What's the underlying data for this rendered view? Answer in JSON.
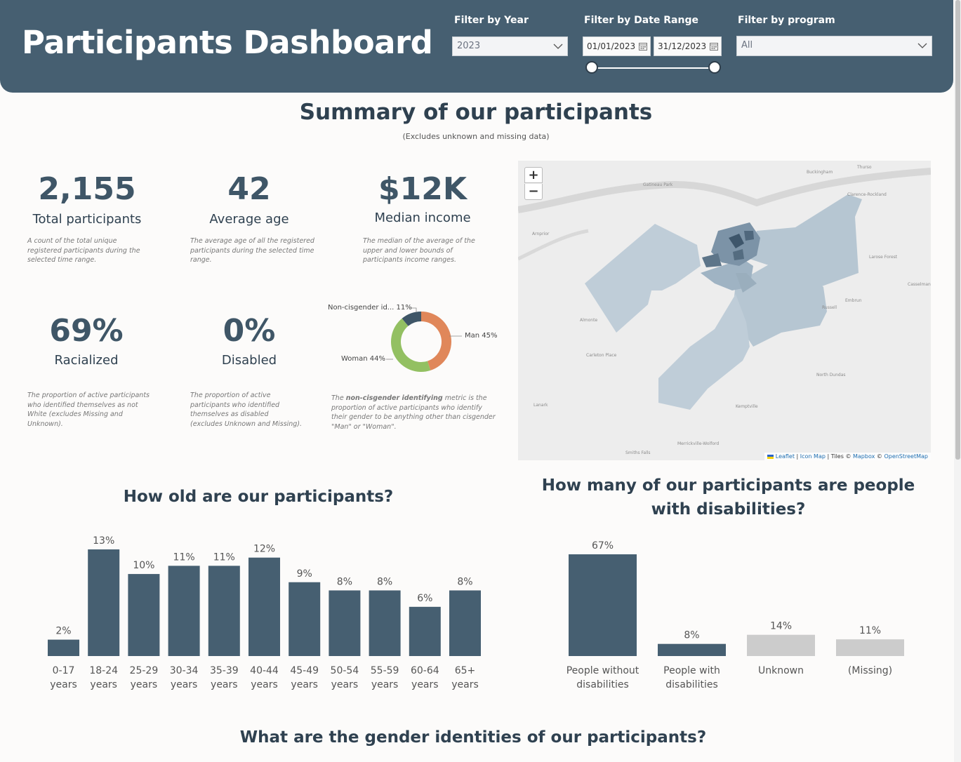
{
  "header": {
    "title": "Participants Dashboard",
    "filter_year": {
      "label": "Filter by Year",
      "value": "2023"
    },
    "filter_date": {
      "label": "Filter by Date Range",
      "start": "01/01/2023",
      "end": "31/12/2023"
    },
    "filter_program": {
      "label": "Filter by program",
      "value": "All"
    }
  },
  "summary": {
    "title": "Summary of our participants",
    "subtitle": "(Excludes unknown and missing data)"
  },
  "kpis": {
    "total": {
      "value": "2,155",
      "label": "Total participants",
      "desc": "A count of the total unique registered participants during the selected time range."
    },
    "age": {
      "value": "42",
      "label": "Average age",
      "desc": "The average age of all the registered participants during the selected time range."
    },
    "income": {
      "value": "$12K",
      "label": "Median income",
      "desc": "The median of the average of the upper and lower bounds of participants income ranges."
    },
    "racialized": {
      "value": "69%",
      "label": "Racialized",
      "desc": "The proportion of active participants who identified themselves as not White (excludes Missing and Unknown)."
    },
    "disabled": {
      "value": "0%",
      "label": "Disabled",
      "desc": "The proportion of active participants who identified themselves as disabled (excludes Unknown and Missing)."
    }
  },
  "gender_donut": {
    "desc_pre": "The ",
    "desc_bold": "non-cisgender identifying",
    "desc_post": " metric is the proportion of active participants who identify their gender to be anything other than cisgender \"Man\" or \"Woman\".",
    "label_man": "Man 45%",
    "label_woman": "Woman 44%",
    "label_noncis": "Non-cisgender id... 11%"
  },
  "map": {
    "zoom_in": "+",
    "zoom_out": "−",
    "places": [
      "Buckingham",
      "Thurso",
      "Clarence-Rockland",
      "Gatineau Park",
      "Arnprior",
      "Larose Forest",
      "Casselman",
      "Embrun",
      "Russell",
      "Almonte",
      "Carleton Place",
      "North Dundas",
      "Kemptville",
      "Merrickville-Wolford",
      "Smiths Falls",
      "Lanark"
    ],
    "attr_leaflet": "Leaflet",
    "attr_iconmap": "Icon Map",
    "attr_tiles": "| Tiles ©",
    "attr_mapbox": "Mapbox",
    "attr_copy": "©",
    "attr_osm": "OpenStreetMap"
  },
  "age_section": {
    "title": "How old are our participants?"
  },
  "disability_section": {
    "title_line1": "How many of our participants are people",
    "title_line2": "with disabilities?"
  },
  "gender_section": {
    "title": "What are the gender identities of our participants?"
  },
  "colors": {
    "header": "#465f71",
    "bar": "#465f71",
    "bar_muted": "#cccccc",
    "man": "#e0875a",
    "woman": "#93c062",
    "noncis": "#3f5667"
  },
  "chart_data": [
    {
      "type": "pie",
      "title": "",
      "categories": [
        "Man",
        "Woman",
        "Non-cisgender identifying"
      ],
      "values": [
        45,
        44,
        11
      ]
    },
    {
      "type": "bar",
      "title": "How old are our participants?",
      "categories": [
        "0-17 years",
        "18-24 years",
        "25-29 years",
        "30-34 years",
        "35-39 years",
        "40-44 years",
        "45-49 years",
        "50-54 years",
        "55-59 years",
        "60-64 years",
        "65+ years"
      ],
      "values": [
        2,
        13,
        10,
        11,
        11,
        12,
        9,
        8,
        8,
        6,
        8
      ],
      "unit": "%",
      "ylim": [
        0,
        13
      ]
    },
    {
      "type": "bar",
      "title": "How many of our participants are people with disabilities?",
      "categories": [
        "People without disabilities",
        "People with disabilities",
        "Unknown",
        "(Missing)"
      ],
      "values": [
        67,
        8,
        14,
        11
      ],
      "unit": "%",
      "ylim": [
        0,
        67
      ]
    }
  ]
}
